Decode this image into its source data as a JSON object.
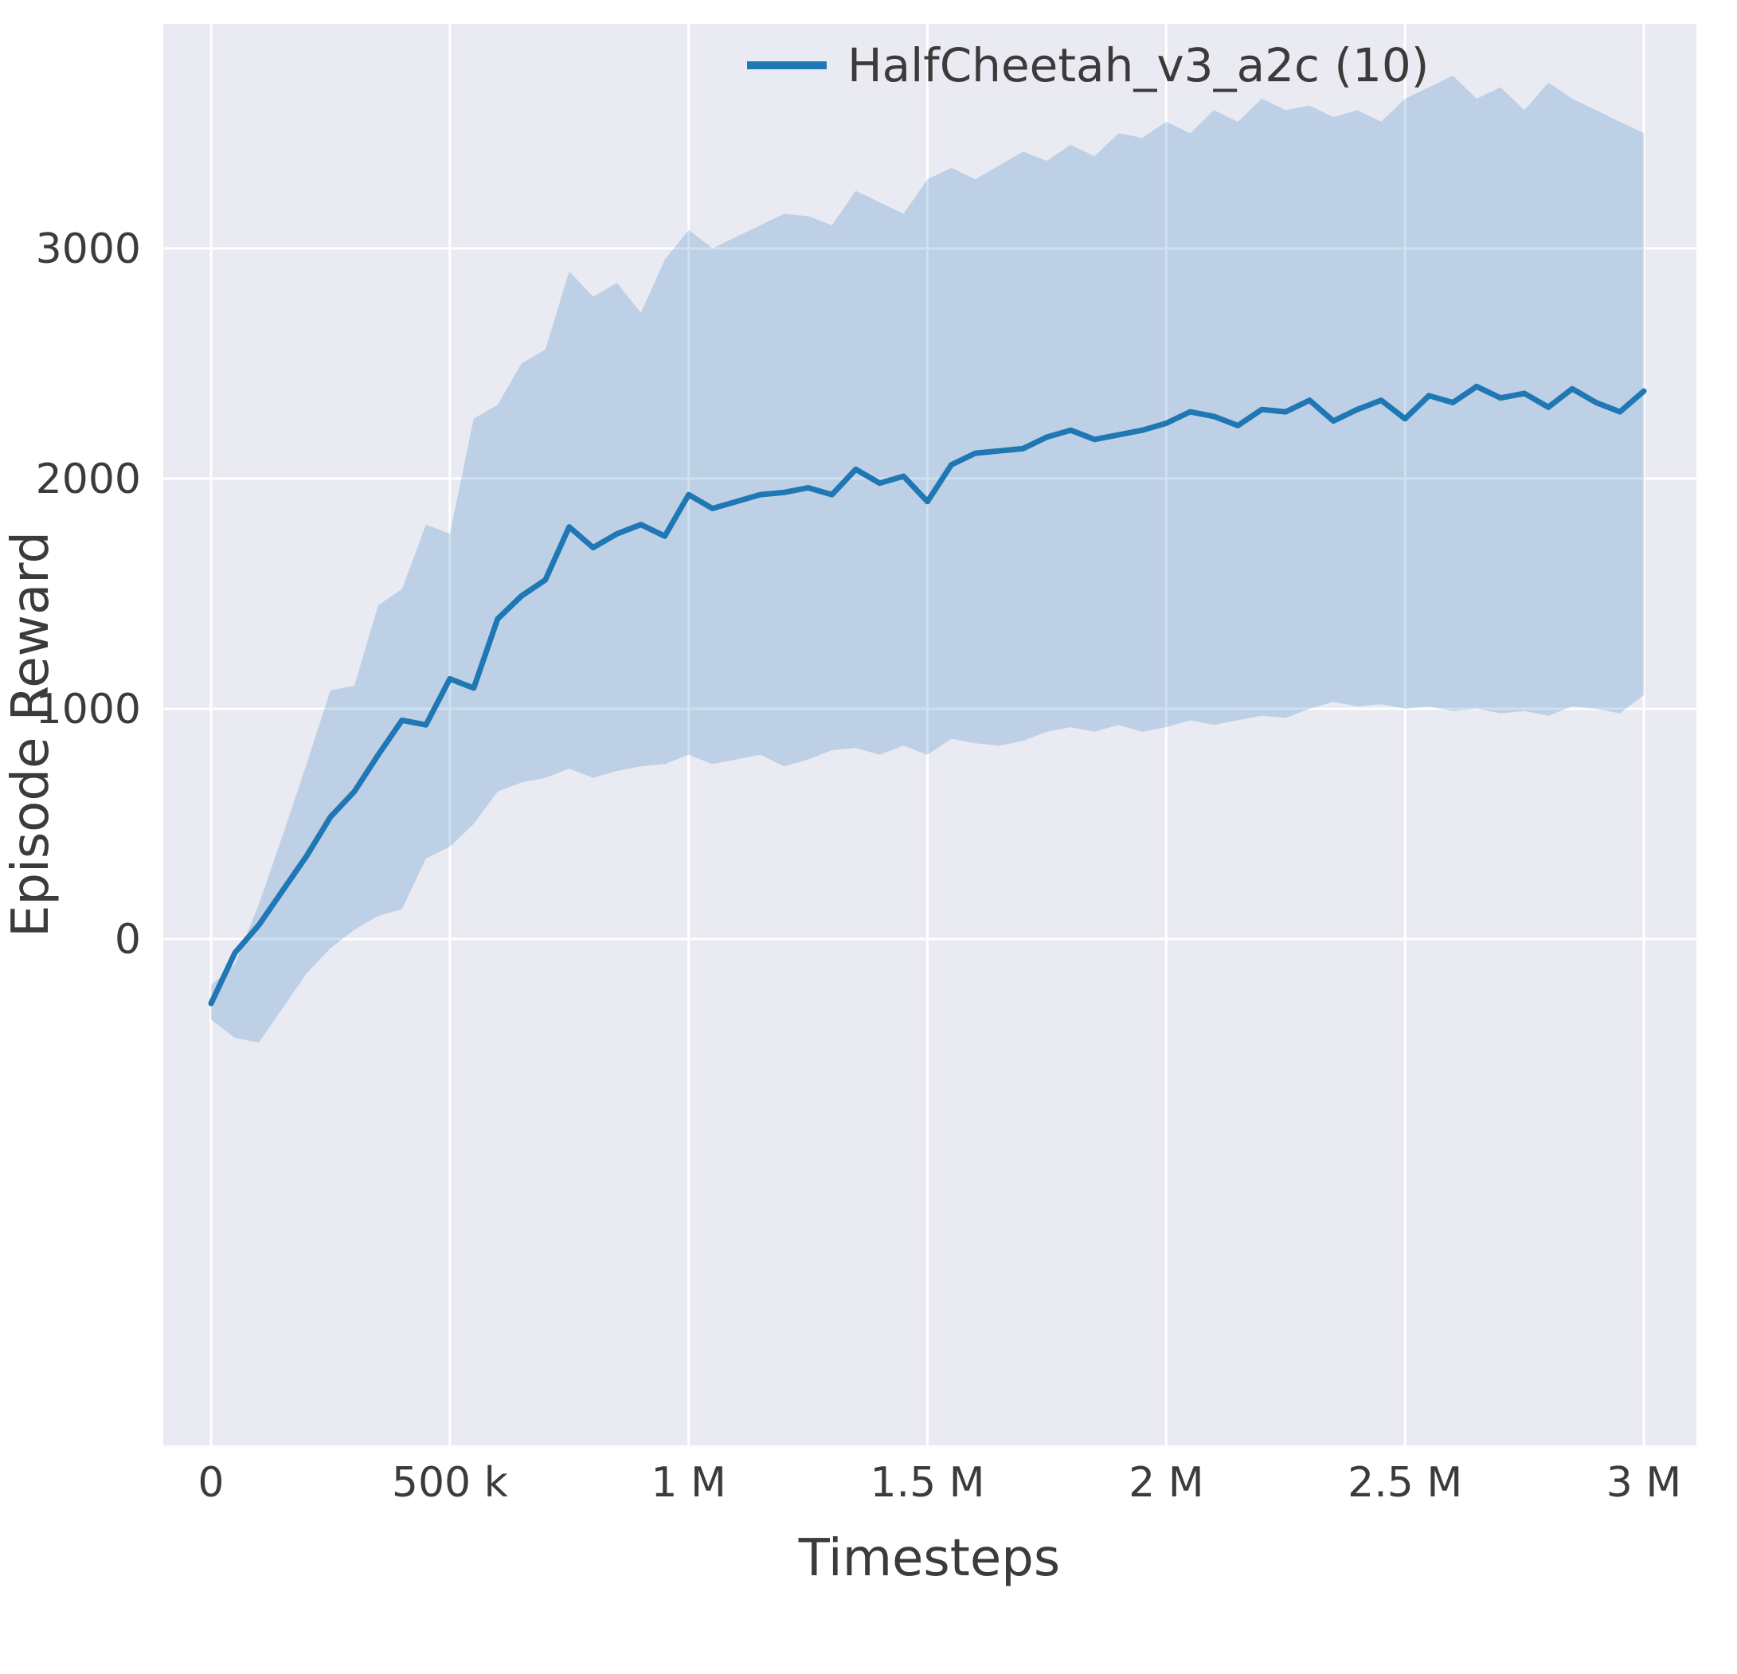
{
  "figure": {
    "background": "#ffffff"
  },
  "chart_data": {
    "type": "line",
    "title": "",
    "xlabel": "Timesteps",
    "ylabel": "Episode Reward",
    "xlim": [
      -100000,
      3110000
    ],
    "ylim": [
      -2200,
      3975
    ],
    "grid": true,
    "plot_background": "#eaeaf2",
    "grid_color": "#ffffff",
    "text_color": "#3b3b3b",
    "line_width": 7,
    "legend": {
      "position": "upper right",
      "entries": [
        {
          "label": "HalfCheetah_v3_a2c (10)",
          "color": "#1f77b4"
        }
      ]
    },
    "x_ticks": [
      {
        "value": 0,
        "label": "0"
      },
      {
        "value": 500000,
        "label": "500 k"
      },
      {
        "value": 1000000,
        "label": "1 M"
      },
      {
        "value": 1500000,
        "label": "1.5 M"
      },
      {
        "value": 2000000,
        "label": "2 M"
      },
      {
        "value": 2500000,
        "label": "2.5 M"
      },
      {
        "value": 3000000,
        "label": "3 M"
      }
    ],
    "y_ticks": [
      {
        "value": 0,
        "label": "0"
      },
      {
        "value": 1000,
        "label": "1000"
      },
      {
        "value": 2000,
        "label": "2000"
      },
      {
        "value": 3000,
        "label": "3000"
      }
    ],
    "series": [
      {
        "name": "HalfCheetah_v3_a2c (10)",
        "color": "#1f77b4",
        "band_color": "#1f77b4",
        "band_opacity": 0.22,
        "x": [
          0,
          50000,
          100000,
          150000,
          200000,
          250000,
          300000,
          350000,
          400000,
          450000,
          500000,
          550000,
          600000,
          650000,
          700000,
          750000,
          800000,
          850000,
          900000,
          950000,
          1000000,
          1050000,
          1100000,
          1150000,
          1200000,
          1250000,
          1300000,
          1350000,
          1400000,
          1450000,
          1500000,
          1550000,
          1600000,
          1650000,
          1700000,
          1750000,
          1800000,
          1850000,
          1900000,
          1950000,
          2000000,
          2050000,
          2100000,
          2150000,
          2200000,
          2250000,
          2300000,
          2350000,
          2400000,
          2450000,
          2500000,
          2550000,
          2600000,
          2650000,
          2700000,
          2750000,
          2800000,
          2850000,
          2900000,
          2950000,
          3000000
        ],
        "mean": [
          -280,
          -60,
          60,
          210,
          360,
          530,
          640,
          800,
          950,
          930,
          1130,
          1090,
          1390,
          1490,
          1560,
          1790,
          1700,
          1760,
          1800,
          1750,
          1930,
          1870,
          1900,
          1930,
          1940,
          1960,
          1930,
          2040,
          1980,
          2010,
          1900,
          2060,
          2110,
          2120,
          2130,
          2180,
          2210,
          2170,
          2190,
          2210,
          2240,
          2290,
          2270,
          2230,
          2300,
          2290,
          2340,
          2250,
          2300,
          2340,
          2260,
          2360,
          2330,
          2400,
          2350,
          2370,
          2310,
          2390,
          2330,
          2290,
          2380
        ],
        "lower": [
          -350,
          -430,
          -450,
          -300,
          -150,
          -40,
          40,
          100,
          130,
          350,
          400,
          500,
          640,
          680,
          700,
          740,
          700,
          730,
          750,
          760,
          800,
          760,
          780,
          800,
          750,
          780,
          820,
          830,
          800,
          840,
          800,
          870,
          850,
          840,
          860,
          900,
          920,
          900,
          930,
          900,
          920,
          950,
          930,
          950,
          970,
          960,
          1000,
          1030,
          1010,
          1020,
          1000,
          1010,
          990,
          1000,
          980,
          990,
          970,
          1010,
          1000,
          980,
          1060
        ],
        "upper": [
          -200,
          -110,
          150,
          450,
          760,
          1080,
          1100,
          1450,
          1520,
          1800,
          1760,
          2260,
          2320,
          2500,
          2560,
          2900,
          2790,
          2850,
          2720,
          2950,
          3080,
          3000,
          3050,
          3100,
          3150,
          3140,
          3100,
          3250,
          3200,
          3150,
          3300,
          3350,
          3300,
          3360,
          3420,
          3380,
          3450,
          3400,
          3500,
          3480,
          3550,
          3500,
          3600,
          3550,
          3650,
          3600,
          3620,
          3570,
          3600,
          3550,
          3650,
          3700,
          3750,
          3650,
          3700,
          3600,
          3720,
          3650,
          3600,
          3550,
          3500
        ]
      }
    ]
  }
}
